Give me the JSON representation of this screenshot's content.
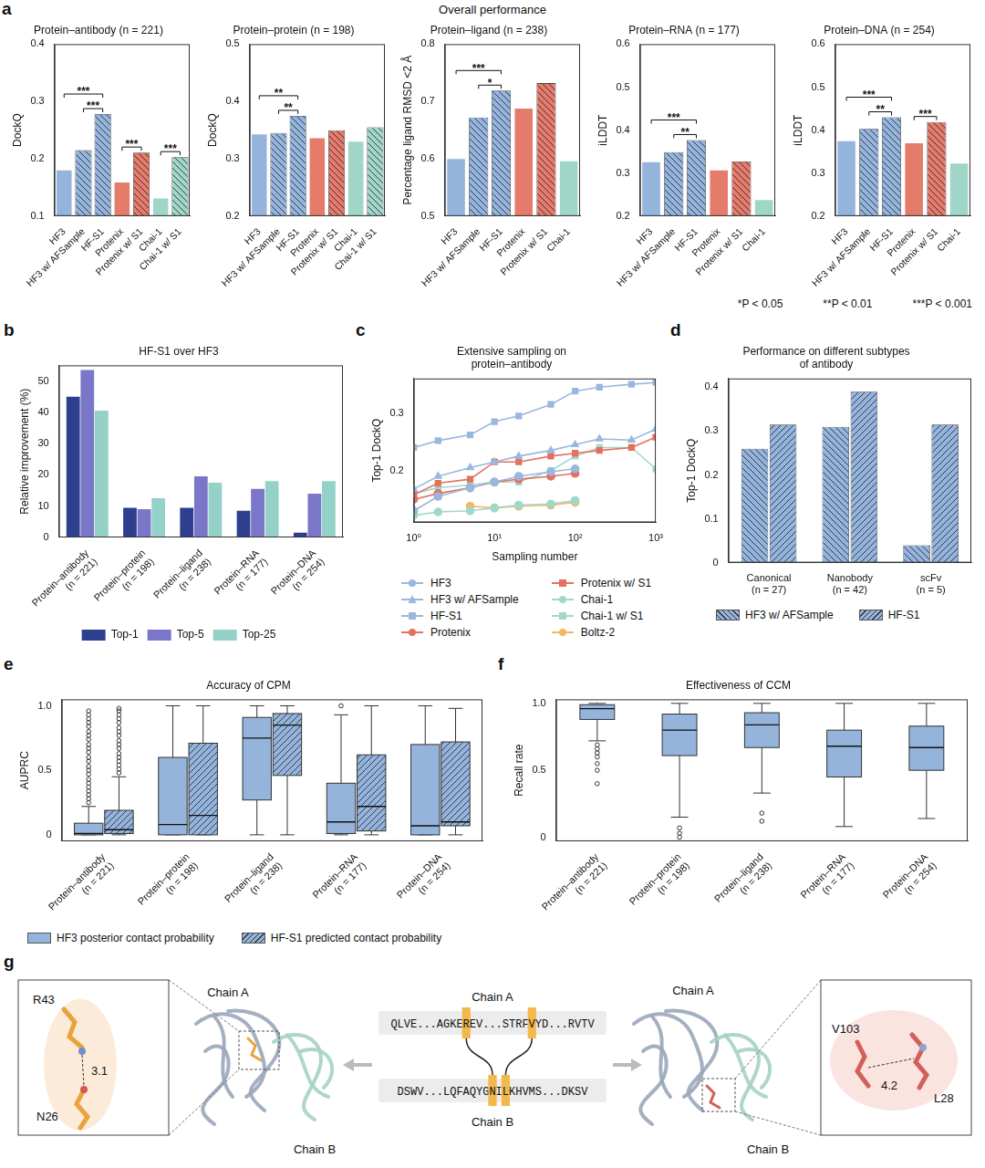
{
  "title": "Overall performance",
  "significance_legend": [
    "*P < 0.05",
    "**P < 0.01",
    "***P < 0.001"
  ],
  "chart_data": [
    {
      "panel": "a",
      "type": "bar",
      "title": "Protein–antibody (n = 221)",
      "ylabel": "DockQ",
      "categories": [
        "HF3",
        "HF3 w/ AFSample",
        "HF-S1",
        "Protenix",
        "Protenix w/ S1",
        "Chai-1",
        "Chai-1 w/ S1"
      ],
      "values": [
        0.181,
        0.215,
        0.278,
        0.16,
        0.211,
        0.132,
        0.203
      ],
      "colors": [
        "#94b4dc",
        "#94b4dc",
        "#94b4dc",
        "#e57b6a",
        "#e57b6a",
        "#9fd6c8",
        "#9fd6c8"
      ],
      "line_styles": [
        "solid",
        "hatched",
        "hatched",
        "solid",
        "hatched",
        "solid",
        "hatched"
      ],
      "ylim": [
        0.1,
        0.4
      ],
      "yticks": [
        0.1,
        0.2,
        0.3,
        0.4
      ],
      "grid": false,
      "significance": [
        {
          "from": "HF3",
          "to": "HF-S1",
          "label": "***"
        },
        {
          "from": "HF3 w/ AFSample",
          "to": "HF-S1",
          "label": "***"
        },
        {
          "from": "Protenix",
          "to": "Protenix w/ S1",
          "label": "***"
        },
        {
          "from": "Chai-1",
          "to": "Chai-1 w/ S1",
          "label": "***"
        }
      ]
    },
    {
      "type": "bar",
      "title": "Protein–protein (n = 198)",
      "ylabel": "DockQ",
      "categories": [
        "HF3",
        "HF3 w/ AFSample",
        "HF-S1",
        "Protenix",
        "Protenix w/ S1",
        "Chai-1",
        "Chai-1 w/ S1"
      ],
      "values": [
        0.344,
        0.345,
        0.375,
        0.337,
        0.35,
        0.331,
        0.355
      ],
      "colors": [
        "#94b4dc",
        "#94b4dc",
        "#94b4dc",
        "#e57b6a",
        "#e57b6a",
        "#9fd6c8",
        "#9fd6c8"
      ],
      "line_styles": [
        "solid",
        "hatched",
        "hatched",
        "solid",
        "hatched",
        "solid",
        "hatched"
      ],
      "ylim": [
        0.2,
        0.5
      ],
      "yticks": [
        0.2,
        0.3,
        0.4,
        0.5
      ],
      "grid": false,
      "significance": [
        {
          "from": "HF3",
          "to": "HF-S1",
          "label": "**"
        },
        {
          "from": "HF3 w/ AFSample",
          "to": "HF-S1",
          "label": "**"
        }
      ]
    },
    {
      "type": "bar",
      "title": "Protein–ligand (n = 238)",
      "ylabel": "Percentage ligand RMSD <2 Å",
      "categories": [
        "HF3",
        "HF3 w/ AFSample",
        "HF-S1",
        "Protenix",
        "Protenix w/ S1",
        "Chai-1"
      ],
      "values": [
        0.601,
        0.672,
        0.719,
        0.689,
        0.732,
        0.597
      ],
      "colors": [
        "#94b4dc",
        "#94b4dc",
        "#94b4dc",
        "#e57b6a",
        "#e57b6a",
        "#9fd6c8"
      ],
      "line_styles": [
        "solid",
        "hatched",
        "hatched",
        "solid",
        "hatched",
        "solid"
      ],
      "ylim": [
        0.5,
        0.8
      ],
      "yticks": [
        0.5,
        0.6,
        0.7,
        0.8
      ],
      "grid": false,
      "significance": [
        {
          "from": "HF3",
          "to": "HF-S1",
          "label": "***"
        },
        {
          "from": "HF3 w/ AFSample",
          "to": "HF-S1",
          "label": "*"
        }
      ]
    },
    {
      "type": "bar",
      "title": "Protein–RNA (n = 177)",
      "ylabel": "iLDDT",
      "categories": [
        "HF3",
        "HF3 w/ AFSample",
        "HF-S1",
        "Protenix",
        "Protenix w/ S1",
        "Chai-1"
      ],
      "values": [
        0.327,
        0.349,
        0.377,
        0.308,
        0.327,
        0.239
      ],
      "colors": [
        "#94b4dc",
        "#94b4dc",
        "#94b4dc",
        "#e57b6a",
        "#e57b6a",
        "#9fd6c8"
      ],
      "line_styles": [
        "solid",
        "hatched",
        "hatched",
        "solid",
        "hatched",
        "solid"
      ],
      "ylim": [
        0.2,
        0.6
      ],
      "yticks": [
        0.2,
        0.3,
        0.4,
        0.5,
        0.6
      ],
      "grid": false,
      "significance": [
        {
          "from": "HF3",
          "to": "HF-S1",
          "label": "***"
        },
        {
          "from": "HF3 w/ AFSample",
          "to": "HF-S1",
          "label": "**"
        }
      ]
    },
    {
      "type": "bar",
      "title": "Protein–DNA (n = 254)",
      "ylabel": "iLDDT",
      "categories": [
        "HF3",
        "HF3 w/ AFSample",
        "HF-S1",
        "Protenix",
        "Protenix w/ S1",
        "Chai-1"
      ],
      "values": [
        0.376,
        0.403,
        0.43,
        0.371,
        0.419,
        0.324
      ],
      "colors": [
        "#94b4dc",
        "#94b4dc",
        "#94b4dc",
        "#e57b6a",
        "#e57b6a",
        "#9fd6c8"
      ],
      "line_styles": [
        "solid",
        "hatched",
        "hatched",
        "solid",
        "hatched",
        "solid"
      ],
      "ylim": [
        0.2,
        0.6
      ],
      "yticks": [
        0.2,
        0.3,
        0.4,
        0.5,
        0.6
      ],
      "grid": false,
      "significance": [
        {
          "from": "HF3",
          "to": "HF-S1",
          "label": "***"
        },
        {
          "from": "HF3 w/ AFSample",
          "to": "HF-S1",
          "label": "**"
        },
        {
          "from": "Protenix",
          "to": "Protenix w/ S1",
          "label": "***"
        }
      ]
    },
    {
      "panel": "b",
      "type": "bar",
      "title": "HF-S1 over HF3",
      "ylabel": "Relative improvement (%)",
      "categories": [
        "Protein–antibody (n = 221)",
        "Protein–protein (n = 198)",
        "Protein–ligand (n = 238)",
        "Protein–RNA (n = 177)",
        "Protein–DNA (n = 254)"
      ],
      "series": [
        {
          "name": "Top-1",
          "color": "#2f3f8f",
          "values": [
            45,
            9.5,
            9.5,
            8.5,
            1.5
          ]
        },
        {
          "name": "Top-5",
          "color": "#7b77c8",
          "values": [
            53.5,
            9,
            19.5,
            15.5,
            14
          ]
        },
        {
          "name": "Top-25",
          "color": "#93d1c9",
          "values": [
            40.5,
            12.5,
            17.5,
            18,
            18
          ]
        }
      ],
      "ylim": [
        0,
        55
      ],
      "yticks": [
        0,
        10,
        20,
        30,
        40,
        50
      ],
      "grid": false,
      "legend": "bottom"
    },
    {
      "panel": "c",
      "type": "line",
      "title": "Extensive sampling on protein–antibody",
      "xlabel": "Sampling number",
      "ylabel": "Top-1 DockQ",
      "log": "x",
      "x": [
        1,
        2,
        5,
        10,
        20,
        50,
        100,
        200,
        500,
        1000
      ],
      "xlim": [
        1,
        1000
      ],
      "xticks": [
        {
          "value": 1,
          "label": "10⁰"
        },
        {
          "value": 10,
          "label": "10¹"
        },
        {
          "value": 100,
          "label": "10²"
        },
        {
          "value": 1000,
          "label": "10³"
        }
      ],
      "ylim": [
        0.11,
        0.36
      ],
      "yticks": [
        0.2,
        0.3
      ],
      "grid": false,
      "legend": "bottom",
      "series": [
        {
          "name": "HF3",
          "color": "#9ab7de",
          "marker": "circle",
          "values": [
            0.13,
            0.155,
            0.17,
            0.18,
            0.19,
            0.198,
            0.203,
            null,
            null,
            null
          ]
        },
        {
          "name": "HF3 w/ AFSample",
          "color": "#9ab7de",
          "marker": "triangle",
          "values": [
            0.168,
            0.19,
            0.205,
            0.215,
            0.225,
            0.235,
            0.245,
            0.255,
            0.253,
            0.272
          ]
        },
        {
          "name": "HF-S1",
          "color": "#9ab7de",
          "marker": "square",
          "values": [
            0.24,
            0.252,
            0.262,
            0.285,
            0.295,
            0.315,
            0.338,
            0.345,
            0.35,
            0.353
          ]
        },
        {
          "name": "Protenix",
          "color": "#e4705e",
          "marker": "circle",
          "values": [
            0.15,
            0.16,
            0.17,
            0.18,
            0.185,
            0.19,
            0.195,
            null,
            null,
            null
          ]
        },
        {
          "name": "Protenix w/ S1",
          "color": "#e4705e",
          "marker": "square",
          "values": [
            0.158,
            0.178,
            0.185,
            0.215,
            0.215,
            0.225,
            0.23,
            0.235,
            0.24,
            0.258
          ]
        },
        {
          "name": "Chai-1",
          "color": "#9fd8cc",
          "marker": "circle",
          "values": [
            0.122,
            0.128,
            0.13,
            0.135,
            0.14,
            0.142,
            0.148,
            null,
            null,
            null
          ]
        },
        {
          "name": "Chai-1 w/ S1",
          "color": "#9fd8cc",
          "marker": "square",
          "values": [
            0.16,
            0.17,
            0.175,
            0.18,
            0.18,
            0.2,
            0.225,
            0.24,
            0.24,
            0.203
          ]
        },
        {
          "name": "Boltz-2",
          "color": "#f0b860",
          "marker": "circle",
          "values": [
            null,
            null,
            0.138,
            0.135,
            0.138,
            0.14,
            0.145,
            null,
            null,
            null
          ]
        }
      ]
    },
    {
      "panel": "d",
      "type": "bar",
      "title": "Performance on different subtypes of antibody",
      "ylabel": "Top-1 DockQ",
      "categories": [
        "Canonical (n = 27)",
        "Nanobody (n = 42)",
        "scFv (n = 5)"
      ],
      "series": [
        {
          "name": "HF3 w/ AFSample",
          "color": "#94b4dc",
          "line_style": "hatched",
          "values": [
            0.26,
            0.31,
            0.04
          ]
        },
        {
          "name": "HF-S1",
          "color": "#94b4dc",
          "line_style": "hatched_forward",
          "values": [
            0.315,
            0.39,
            0.315
          ]
        }
      ],
      "ylim": [
        0,
        0.42
      ],
      "yticks": [
        0,
        0.1,
        0.2,
        0.3,
        0.4
      ],
      "grid": false,
      "legend": "bottom"
    },
    {
      "panel": "e",
      "type": "box",
      "title": "Accuracy of CPM",
      "ylabel": "AUPRC",
      "categories": [
        "Protein–antibody (n = 221)",
        "Protein–protein (n = 198)",
        "Protein–ligand (n = 238)",
        "Protein–RNA (n = 177)",
        "Protein–DNA (n = 254)"
      ],
      "ylim": [
        -0.05,
        1.05
      ],
      "yticks": [
        0,
        0.5,
        {
          "value": 1,
          "label": "1.0"
        }
      ],
      "grid": false,
      "legend": "bottom",
      "series": [
        {
          "name": "HF3 posterior contact probability",
          "color": "#94b4dc",
          "line_style": "solid",
          "values": [
            {
              "min": 0,
              "q1": 0,
              "median": 0.01,
              "q3": 0.09,
              "max": 0.22,
              "outliers": [
                0.25,
                0.28,
                0.31,
                0.34,
                0.37,
                0.4,
                0.43,
                0.47,
                0.5,
                0.53,
                0.57,
                0.6,
                0.64,
                0.67,
                0.7,
                0.74,
                0.77,
                0.8,
                0.84,
                0.87,
                0.9,
                0.93,
                0.96
              ]
            },
            {
              "min": 0,
              "q1": 0,
              "median": 0.08,
              "q3": 0.6,
              "max": 1.0,
              "outliers": []
            },
            {
              "min": 0,
              "q1": 0.27,
              "median": 0.75,
              "q3": 0.91,
              "max": 1.0,
              "outliers": []
            },
            {
              "min": 0,
              "q1": 0.01,
              "median": 0.1,
              "q3": 0.4,
              "max": 0.93,
              "outliers": [
                1.0
              ]
            },
            {
              "min": 0,
              "q1": 0,
              "median": 0.07,
              "q3": 0.7,
              "max": 1.0,
              "outliers": []
            }
          ]
        },
        {
          "name": "HF-S1 predicted contact probability",
          "color": "#94b4dc",
          "line_style": "hatched_forward",
          "values": [
            {
              "min": 0,
              "q1": 0.01,
              "median": 0.04,
              "q3": 0.19,
              "max": 0.45,
              "outliers": [
                0.48,
                0.51,
                0.54,
                0.57,
                0.6,
                0.63,
                0.67,
                0.7,
                0.73,
                0.77,
                0.8,
                0.83,
                0.87,
                0.9,
                0.93,
                0.96,
                0.98
              ]
            },
            {
              "min": 0,
              "q1": 0,
              "median": 0.15,
              "q3": 0.71,
              "max": 1.0,
              "outliers": []
            },
            {
              "min": 0,
              "q1": 0.46,
              "median": 0.85,
              "q3": 0.94,
              "max": 1.0,
              "outliers": []
            },
            {
              "min": 0,
              "q1": 0.03,
              "median": 0.22,
              "q3": 0.62,
              "max": 1.0,
              "outliers": []
            },
            {
              "min": 0,
              "q1": 0.07,
              "median": 0.1,
              "q3": 0.72,
              "max": 0.98,
              "outliers": []
            }
          ]
        }
      ]
    },
    {
      "panel": "f",
      "type": "box",
      "title": "Effectiveness of CCM",
      "ylabel": "Recall rate",
      "categories": [
        "Protein–antibody (n = 221)",
        "Protein–protein (n = 198)",
        "Protein–ligand (n = 238)",
        "Protein–RNA (n = 177)",
        "Protein–DNA (n = 254)"
      ],
      "ylim": [
        -0.03,
        1.03
      ],
      "yticks": [
        0,
        0.5,
        {
          "value": 1,
          "label": "1.0"
        }
      ],
      "grid": false,
      "color": "#94b4dc",
      "values": [
        {
          "min": 0.72,
          "q1": 0.88,
          "median": 0.96,
          "q3": 0.99,
          "max": 1.0,
          "outliers": [
            0.4,
            0.5,
            0.55,
            0.6,
            0.63,
            0.66,
            0.69
          ]
        },
        {
          "min": 0.15,
          "q1": 0.61,
          "median": 0.8,
          "q3": 0.92,
          "max": 1.0,
          "outliers": [
            0.0,
            0.03,
            0.07
          ]
        },
        {
          "min": 0.33,
          "q1": 0.67,
          "median": 0.84,
          "q3": 0.93,
          "max": 1.0,
          "outliers": [
            0.12,
            0.18
          ]
        },
        {
          "min": 0.08,
          "q1": 0.45,
          "median": 0.68,
          "q3": 0.8,
          "max": 1.0,
          "outliers": []
        },
        {
          "min": 0.14,
          "q1": 0.5,
          "median": 0.67,
          "q3": 0.83,
          "max": 1.0,
          "outliers": []
        }
      ]
    }
  ],
  "panel_g": {
    "panel": "g",
    "left_view": {
      "chain_a": "Chain A",
      "chain_b": "Chain B",
      "residue_1": "R43",
      "residue_2": "N26",
      "distance": 3.1
    },
    "sequences": {
      "chain_a": {
        "label": "Chain A",
        "segments": [
          {
            "text": "QLVE...AGKE",
            "highlight": false
          },
          {
            "text": "R",
            "highlight": true
          },
          {
            "text": "EV...STRF",
            "highlight": false
          },
          {
            "text": "V",
            "highlight": true
          },
          {
            "text": "YD...RVTV",
            "highlight": false
          }
        ]
      },
      "chain_b": {
        "label": "Chain B",
        "segments": [
          {
            "text": "DSWV...LQFAQYG",
            "highlight": false
          },
          {
            "text": "N",
            "highlight": true
          },
          {
            "text": "I",
            "highlight": false
          },
          {
            "text": "L",
            "highlight": true
          },
          {
            "text": "KHVMS...DKSV",
            "highlight": false
          }
        ]
      }
    },
    "right_view": {
      "chain_a": "Chain A",
      "chain_b": "Chain B",
      "residue_1": "V103",
      "residue_2": "L28",
      "distance": 4.2
    }
  }
}
